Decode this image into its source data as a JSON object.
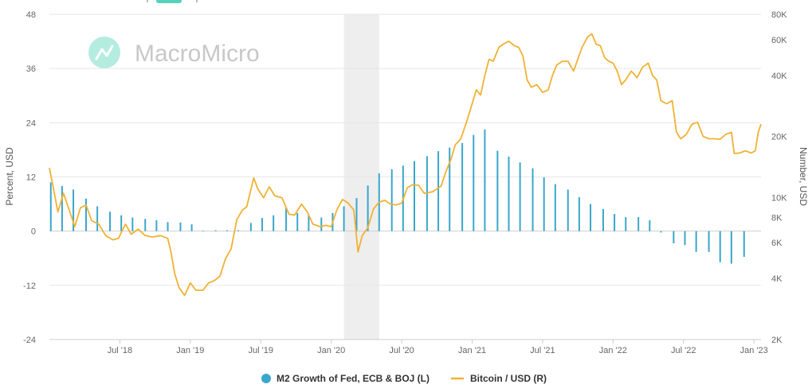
{
  "watermark": {
    "brand": "MacroMicro"
  },
  "colors": {
    "bar": "#3aa6cc",
    "line": "#f0b233",
    "recession": "#eeeeee",
    "grid": "#e6e6e6"
  },
  "chart_data": {
    "type": "bar+line",
    "left_axis": {
      "title": "Percent, USD",
      "range": [
        -24,
        48
      ],
      "ticks": [
        {
          "value": 48,
          "label": "48"
        },
        {
          "value": 36,
          "label": "36"
        },
        {
          "value": 24,
          "label": "24"
        },
        {
          "value": 12,
          "label": "12"
        },
        {
          "value": 0,
          "label": "0"
        },
        {
          "value": -12,
          "label": "-12"
        },
        {
          "value": -24,
          "label": "-24"
        }
      ]
    },
    "right_axis": {
      "title": "Number, USD",
      "scale": "log",
      "range": [
        2000,
        80000
      ],
      "ticks": [
        {
          "value": 80000,
          "label": "80K"
        },
        {
          "value": 60000,
          "label": "60K"
        },
        {
          "value": 40000,
          "label": "40K"
        },
        {
          "value": 20000,
          "label": "20K"
        },
        {
          "value": 10000,
          "label": "10K"
        },
        {
          "value": 8000,
          "label": "8K"
        },
        {
          "value": 6000,
          "label": "6K"
        },
        {
          "value": 4000,
          "label": "4K"
        },
        {
          "value": 2000,
          "label": "2K"
        }
      ]
    },
    "x_axis": {
      "range": [
        2018.0,
        2023.05
      ],
      "ticks": [
        {
          "value": 2018.5,
          "label": "Jul '18"
        },
        {
          "value": 2019.0,
          "label": "Jan '19"
        },
        {
          "value": 2019.5,
          "label": "Jul '19"
        },
        {
          "value": 2020.0,
          "label": "Jan '20"
        },
        {
          "value": 2020.5,
          "label": "Jul '20"
        },
        {
          "value": 2021.0,
          "label": "Jan '21"
        },
        {
          "value": 2021.5,
          "label": "Jul '21"
        },
        {
          "value": 2022.0,
          "label": "Jan '22"
        },
        {
          "value": 2022.5,
          "label": "Jul '22"
        },
        {
          "value": 2023.0,
          "label": "Jan '23"
        }
      ]
    },
    "recession_band": [
      2020.09,
      2020.34
    ],
    "series": [
      {
        "name": "M2 Growth of Fed, ECB & BOJ (L)",
        "kind": "bar",
        "points": [
          [
            2018.01,
            10.8
          ],
          [
            2018.09,
            10.0
          ],
          [
            2018.17,
            9.2
          ],
          [
            2018.26,
            7.2
          ],
          [
            2018.34,
            5.5
          ],
          [
            2018.43,
            4.3
          ],
          [
            2018.51,
            3.5
          ],
          [
            2018.59,
            3.0
          ],
          [
            2018.68,
            2.7
          ],
          [
            2018.76,
            2.4
          ],
          [
            2018.84,
            2.0
          ],
          [
            2018.93,
            1.9
          ],
          [
            2019.01,
            1.5
          ],
          [
            2019.09,
            0.1
          ],
          [
            2019.18,
            0.2
          ],
          [
            2019.26,
            0.2
          ],
          [
            2019.34,
            0.2
          ],
          [
            2019.43,
            1.8
          ],
          [
            2019.51,
            2.9
          ],
          [
            2019.59,
            3.5
          ],
          [
            2019.68,
            5.2
          ],
          [
            2019.76,
            4.0
          ],
          [
            2019.84,
            3.5
          ],
          [
            2019.93,
            3.0
          ],
          [
            2020.01,
            4.0
          ],
          [
            2020.09,
            5.5
          ],
          [
            2020.18,
            7.3
          ],
          [
            2020.26,
            10.1
          ],
          [
            2020.34,
            12.8
          ],
          [
            2020.43,
            13.7
          ],
          [
            2020.51,
            14.5
          ],
          [
            2020.59,
            15.5
          ],
          [
            2020.68,
            16.6
          ],
          [
            2020.76,
            17.7
          ],
          [
            2020.84,
            18.5
          ],
          [
            2020.93,
            19.5
          ],
          [
            2021.01,
            21.3
          ],
          [
            2021.09,
            22.5
          ],
          [
            2021.18,
            17.8
          ],
          [
            2021.26,
            16.5
          ],
          [
            2021.34,
            15.2
          ],
          [
            2021.43,
            13.9
          ],
          [
            2021.51,
            11.9
          ],
          [
            2021.59,
            10.4
          ],
          [
            2021.68,
            9.2
          ],
          [
            2021.76,
            7.5
          ],
          [
            2021.84,
            6.0
          ],
          [
            2021.93,
            4.9
          ],
          [
            2022.01,
            3.8
          ],
          [
            2022.09,
            3.1
          ],
          [
            2022.18,
            3.1
          ],
          [
            2022.26,
            2.4
          ],
          [
            2022.34,
            -0.3
          ],
          [
            2022.43,
            -2.7
          ],
          [
            2022.51,
            -3.1
          ],
          [
            2022.59,
            -4.6
          ],
          [
            2022.68,
            -4.6
          ],
          [
            2022.76,
            -6.9
          ],
          [
            2022.84,
            -7.2
          ],
          [
            2022.93,
            -5.7
          ]
        ]
      },
      {
        "name": "Bitcoin / USD (R)",
        "kind": "line",
        "points": [
          [
            2018.0,
            14000
          ],
          [
            2018.03,
            11000
          ],
          [
            2018.06,
            8500
          ],
          [
            2018.1,
            10500
          ],
          [
            2018.14,
            8700
          ],
          [
            2018.18,
            7200
          ],
          [
            2018.22,
            8900
          ],
          [
            2018.26,
            9200
          ],
          [
            2018.3,
            7700
          ],
          [
            2018.35,
            7400
          ],
          [
            2018.4,
            6500
          ],
          [
            2018.45,
            6200
          ],
          [
            2018.49,
            6300
          ],
          [
            2018.54,
            7400
          ],
          [
            2018.58,
            6600
          ],
          [
            2018.63,
            7000
          ],
          [
            2018.68,
            6500
          ],
          [
            2018.73,
            6400
          ],
          [
            2018.79,
            6500
          ],
          [
            2018.84,
            6300
          ],
          [
            2018.86,
            5500
          ],
          [
            2018.89,
            4200
          ],
          [
            2018.92,
            3600
          ],
          [
            2018.96,
            3300
          ],
          [
            2019.0,
            3800
          ],
          [
            2019.04,
            3500
          ],
          [
            2019.09,
            3500
          ],
          [
            2019.13,
            3800
          ],
          [
            2019.17,
            3900
          ],
          [
            2019.21,
            4100
          ],
          [
            2019.25,
            5000
          ],
          [
            2019.29,
            5600
          ],
          [
            2019.33,
            7800
          ],
          [
            2019.37,
            8700
          ],
          [
            2019.4,
            9000
          ],
          [
            2019.45,
            12500
          ],
          [
            2019.48,
            11000
          ],
          [
            2019.52,
            10000
          ],
          [
            2019.56,
            11300
          ],
          [
            2019.6,
            10200
          ],
          [
            2019.65,
            10000
          ],
          [
            2019.7,
            8300
          ],
          [
            2019.74,
            8200
          ],
          [
            2019.79,
            9300
          ],
          [
            2019.83,
            8500
          ],
          [
            2019.87,
            7400
          ],
          [
            2019.92,
            7200
          ],
          [
            2019.96,
            7300
          ],
          [
            2020.0,
            7200
          ],
          [
            2020.04,
            8700
          ],
          [
            2020.08,
            9800
          ],
          [
            2020.12,
            9400
          ],
          [
            2020.16,
            8700
          ],
          [
            2020.19,
            5400
          ],
          [
            2020.22,
            6500
          ],
          [
            2020.26,
            7100
          ],
          [
            2020.3,
            8800
          ],
          [
            2020.34,
            9500
          ],
          [
            2020.38,
            9700
          ],
          [
            2020.42,
            9300
          ],
          [
            2020.46,
            9200
          ],
          [
            2020.5,
            9400
          ],
          [
            2020.54,
            11200
          ],
          [
            2020.58,
            11600
          ],
          [
            2020.62,
            11500
          ],
          [
            2020.66,
            10500
          ],
          [
            2020.72,
            10700
          ],
          [
            2020.78,
            11400
          ],
          [
            2020.81,
            13200
          ],
          [
            2020.85,
            15500
          ],
          [
            2020.88,
            18200
          ],
          [
            2020.92,
            19500
          ],
          [
            2020.96,
            23500
          ],
          [
            2021.0,
            29000
          ],
          [
            2021.03,
            34000
          ],
          [
            2021.06,
            32000
          ],
          [
            2021.09,
            40000
          ],
          [
            2021.12,
            48000
          ],
          [
            2021.15,
            47000
          ],
          [
            2021.19,
            55000
          ],
          [
            2021.22,
            57000
          ],
          [
            2021.26,
            59000
          ],
          [
            2021.3,
            56000
          ],
          [
            2021.33,
            55000
          ],
          [
            2021.36,
            50000
          ],
          [
            2021.39,
            38000
          ],
          [
            2021.42,
            35000
          ],
          [
            2021.46,
            36000
          ],
          [
            2021.5,
            33000
          ],
          [
            2021.54,
            34000
          ],
          [
            2021.57,
            40000
          ],
          [
            2021.6,
            45000
          ],
          [
            2021.64,
            47000
          ],
          [
            2021.68,
            47000
          ],
          [
            2021.72,
            42000
          ],
          [
            2021.75,
            48000
          ],
          [
            2021.78,
            55000
          ],
          [
            2021.82,
            62000
          ],
          [
            2021.85,
            64000
          ],
          [
            2021.88,
            57000
          ],
          [
            2021.91,
            56000
          ],
          [
            2021.94,
            49000
          ],
          [
            2021.97,
            47000
          ],
          [
            2022.0,
            46000
          ],
          [
            2022.03,
            42000
          ],
          [
            2022.06,
            36000
          ],
          [
            2022.09,
            38000
          ],
          [
            2022.13,
            42000
          ],
          [
            2022.17,
            39000
          ],
          [
            2022.21,
            44000
          ],
          [
            2022.25,
            46000
          ],
          [
            2022.28,
            40000
          ],
          [
            2022.31,
            38000
          ],
          [
            2022.34,
            30000
          ],
          [
            2022.38,
            29000
          ],
          [
            2022.42,
            30000
          ],
          [
            2022.45,
            21000
          ],
          [
            2022.48,
            19500
          ],
          [
            2022.52,
            20500
          ],
          [
            2022.56,
            23000
          ],
          [
            2022.6,
            23500
          ],
          [
            2022.64,
            20000
          ],
          [
            2022.68,
            19500
          ],
          [
            2022.72,
            19500
          ],
          [
            2022.76,
            19400
          ],
          [
            2022.8,
            20500
          ],
          [
            2022.84,
            21000
          ],
          [
            2022.86,
            16500
          ],
          [
            2022.9,
            16600
          ],
          [
            2022.94,
            17000
          ],
          [
            2022.98,
            16600
          ],
          [
            2023.01,
            17000
          ],
          [
            2023.03,
            21000
          ],
          [
            2023.05,
            23000
          ]
        ]
      }
    ],
    "legend": [
      {
        "label": "M2 Growth of Fed, ECB & BOJ (L)",
        "marker": "circle"
      },
      {
        "label": "Bitcoin / USD (R)",
        "marker": "line"
      }
    ],
    "legend_position": "bottom-center",
    "grid": true
  }
}
